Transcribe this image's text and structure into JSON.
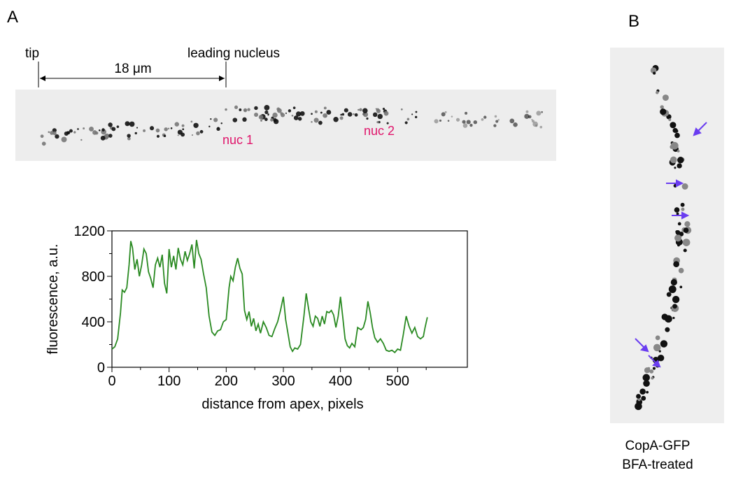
{
  "panel_a": {
    "label": "A",
    "tip": "tip",
    "leading_nucleus": "leading nucleus",
    "scale_bar": "18 μm",
    "nuc_labels": [
      "nuc 1",
      "nuc 2"
    ]
  },
  "panel_b": {
    "label": "B",
    "caption": [
      "CopA-GFP",
      "BFA-treated"
    ]
  },
  "chart_data": {
    "type": "line",
    "x_label": "distance from apex, pixels",
    "y_label": "fluorescence, a.u.",
    "xlim": [
      0,
      622
    ],
    "ylim": [
      0,
      1200
    ],
    "xticks": [
      0,
      100,
      200,
      300,
      400,
      500
    ],
    "yticks": [
      0,
      400,
      800,
      1200
    ],
    "xminor": [
      50,
      150,
      250,
      350,
      450,
      550
    ],
    "yminor": [
      200,
      600,
      1000
    ],
    "series": [
      {
        "color": "#2a8a22",
        "x": [
          0,
          5,
          10,
          15,
          18,
          22,
          26,
          30,
          33,
          36,
          40,
          44,
          48,
          52,
          56,
          60,
          64,
          68,
          72,
          76,
          80,
          84,
          88,
          92,
          96,
          100,
          104,
          108,
          112,
          116,
          120,
          124,
          128,
          132,
          136,
          140,
          144,
          148,
          152,
          156,
          160,
          165,
          170,
          175,
          180,
          185,
          190,
          195,
          200,
          205,
          208,
          212,
          216,
          220,
          224,
          228,
          232,
          236,
          240,
          244,
          248,
          252,
          256,
          260,
          265,
          270,
          275,
          280,
          285,
          290,
          295,
          300,
          304,
          308,
          312,
          316,
          320,
          325,
          330,
          336,
          340,
          344,
          348,
          352,
          356,
          360,
          364,
          368,
          372,
          376,
          380,
          384,
          388,
          392,
          396,
          400,
          404,
          408,
          412,
          416,
          420,
          425,
          430,
          436,
          440,
          444,
          448,
          452,
          456,
          460,
          465,
          470,
          475,
          480,
          485,
          490,
          495,
          500,
          505,
          510,
          515,
          520,
          525,
          530,
          535,
          540,
          545,
          548,
          552
        ],
        "values": [
          160,
          180,
          250,
          480,
          680,
          660,
          700,
          900,
          1110,
          1050,
          860,
          950,
          800,
          900,
          1040,
          1000,
          840,
          780,
          700,
          900,
          960,
          880,
          990,
          740,
          650,
          1040,
          880,
          980,
          860,
          1050,
          950,
          900,
          1020,
          940,
          1000,
          1080,
          870,
          1120,
          1000,
          950,
          830,
          700,
          450,
          310,
          280,
          320,
          330,
          400,
          420,
          700,
          800,
          760,
          880,
          960,
          870,
          820,
          500,
          420,
          490,
          360,
          430,
          320,
          380,
          300,
          400,
          350,
          280,
          270,
          340,
          400,
          500,
          620,
          420,
          300,
          180,
          140,
          170,
          160,
          200,
          450,
          650,
          520,
          400,
          360,
          450,
          430,
          360,
          450,
          380,
          490,
          480,
          500,
          460,
          350,
          450,
          620,
          440,
          250,
          190,
          170,
          210,
          180,
          350,
          330,
          350,
          420,
          580,
          480,
          350,
          260,
          220,
          250,
          210,
          150,
          140,
          150,
          130,
          160,
          150,
          290,
          450,
          360,
          300,
          350,
          270,
          250,
          270,
          350,
          440
        ]
      }
    ]
  }
}
